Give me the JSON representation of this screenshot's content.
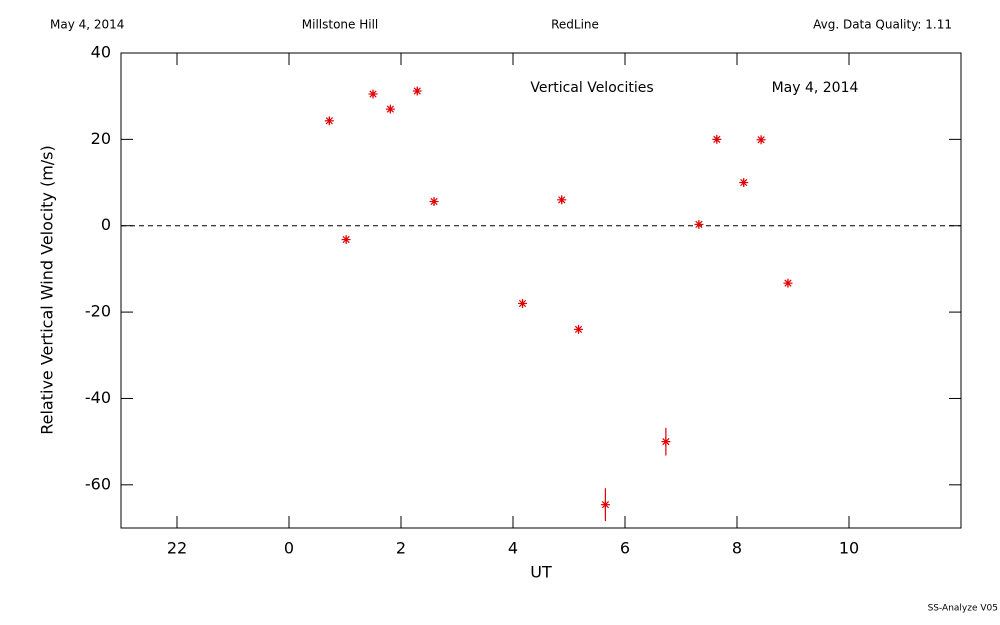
{
  "chart_data": {
    "type": "scatter",
    "header": [
      "May 4, 2014",
      "Millstone Hill",
      "RedLine",
      "Avg. Data Quality: 1.11"
    ],
    "annotations": [
      "Vertical Velocities",
      "May 4, 2014"
    ],
    "xlabel": "UT",
    "ylabel": "Relative Vertical Wind Velocity (m/s)",
    "footer": "SS-Analyze V05",
    "xlim": [
      -3,
      12
    ],
    "xticks": [
      {
        "value": -2,
        "label": "22"
      },
      0,
      2,
      4,
      6,
      8,
      10
    ],
    "ylim": [
      -70,
      40
    ],
    "yticks": [
      -60,
      -40,
      -20,
      0,
      20,
      40
    ],
    "hline": 0,
    "series": [
      {
        "color": "#e00000",
        "x": [
          0.72,
          1.02,
          1.5,
          1.81,
          2.29,
          2.59,
          4.17,
          4.87,
          5.17,
          5.65,
          6.73,
          7.32,
          7.64,
          8.12,
          8.43,
          8.91
        ],
        "values": [
          24.3,
          -3.2,
          30.5,
          27,
          31.2,
          5.6,
          -18,
          6,
          -24,
          -64.6,
          -50,
          0.3,
          20,
          10,
          19.9,
          -13.3
        ],
        "errors": [
          0.8,
          0.8,
          0.8,
          0.8,
          0.8,
          0.8,
          0.8,
          0.8,
          0.8,
          3.8,
          3.2,
          0.8,
          0.8,
          0.8,
          0.8,
          0.8
        ]
      }
    ]
  }
}
